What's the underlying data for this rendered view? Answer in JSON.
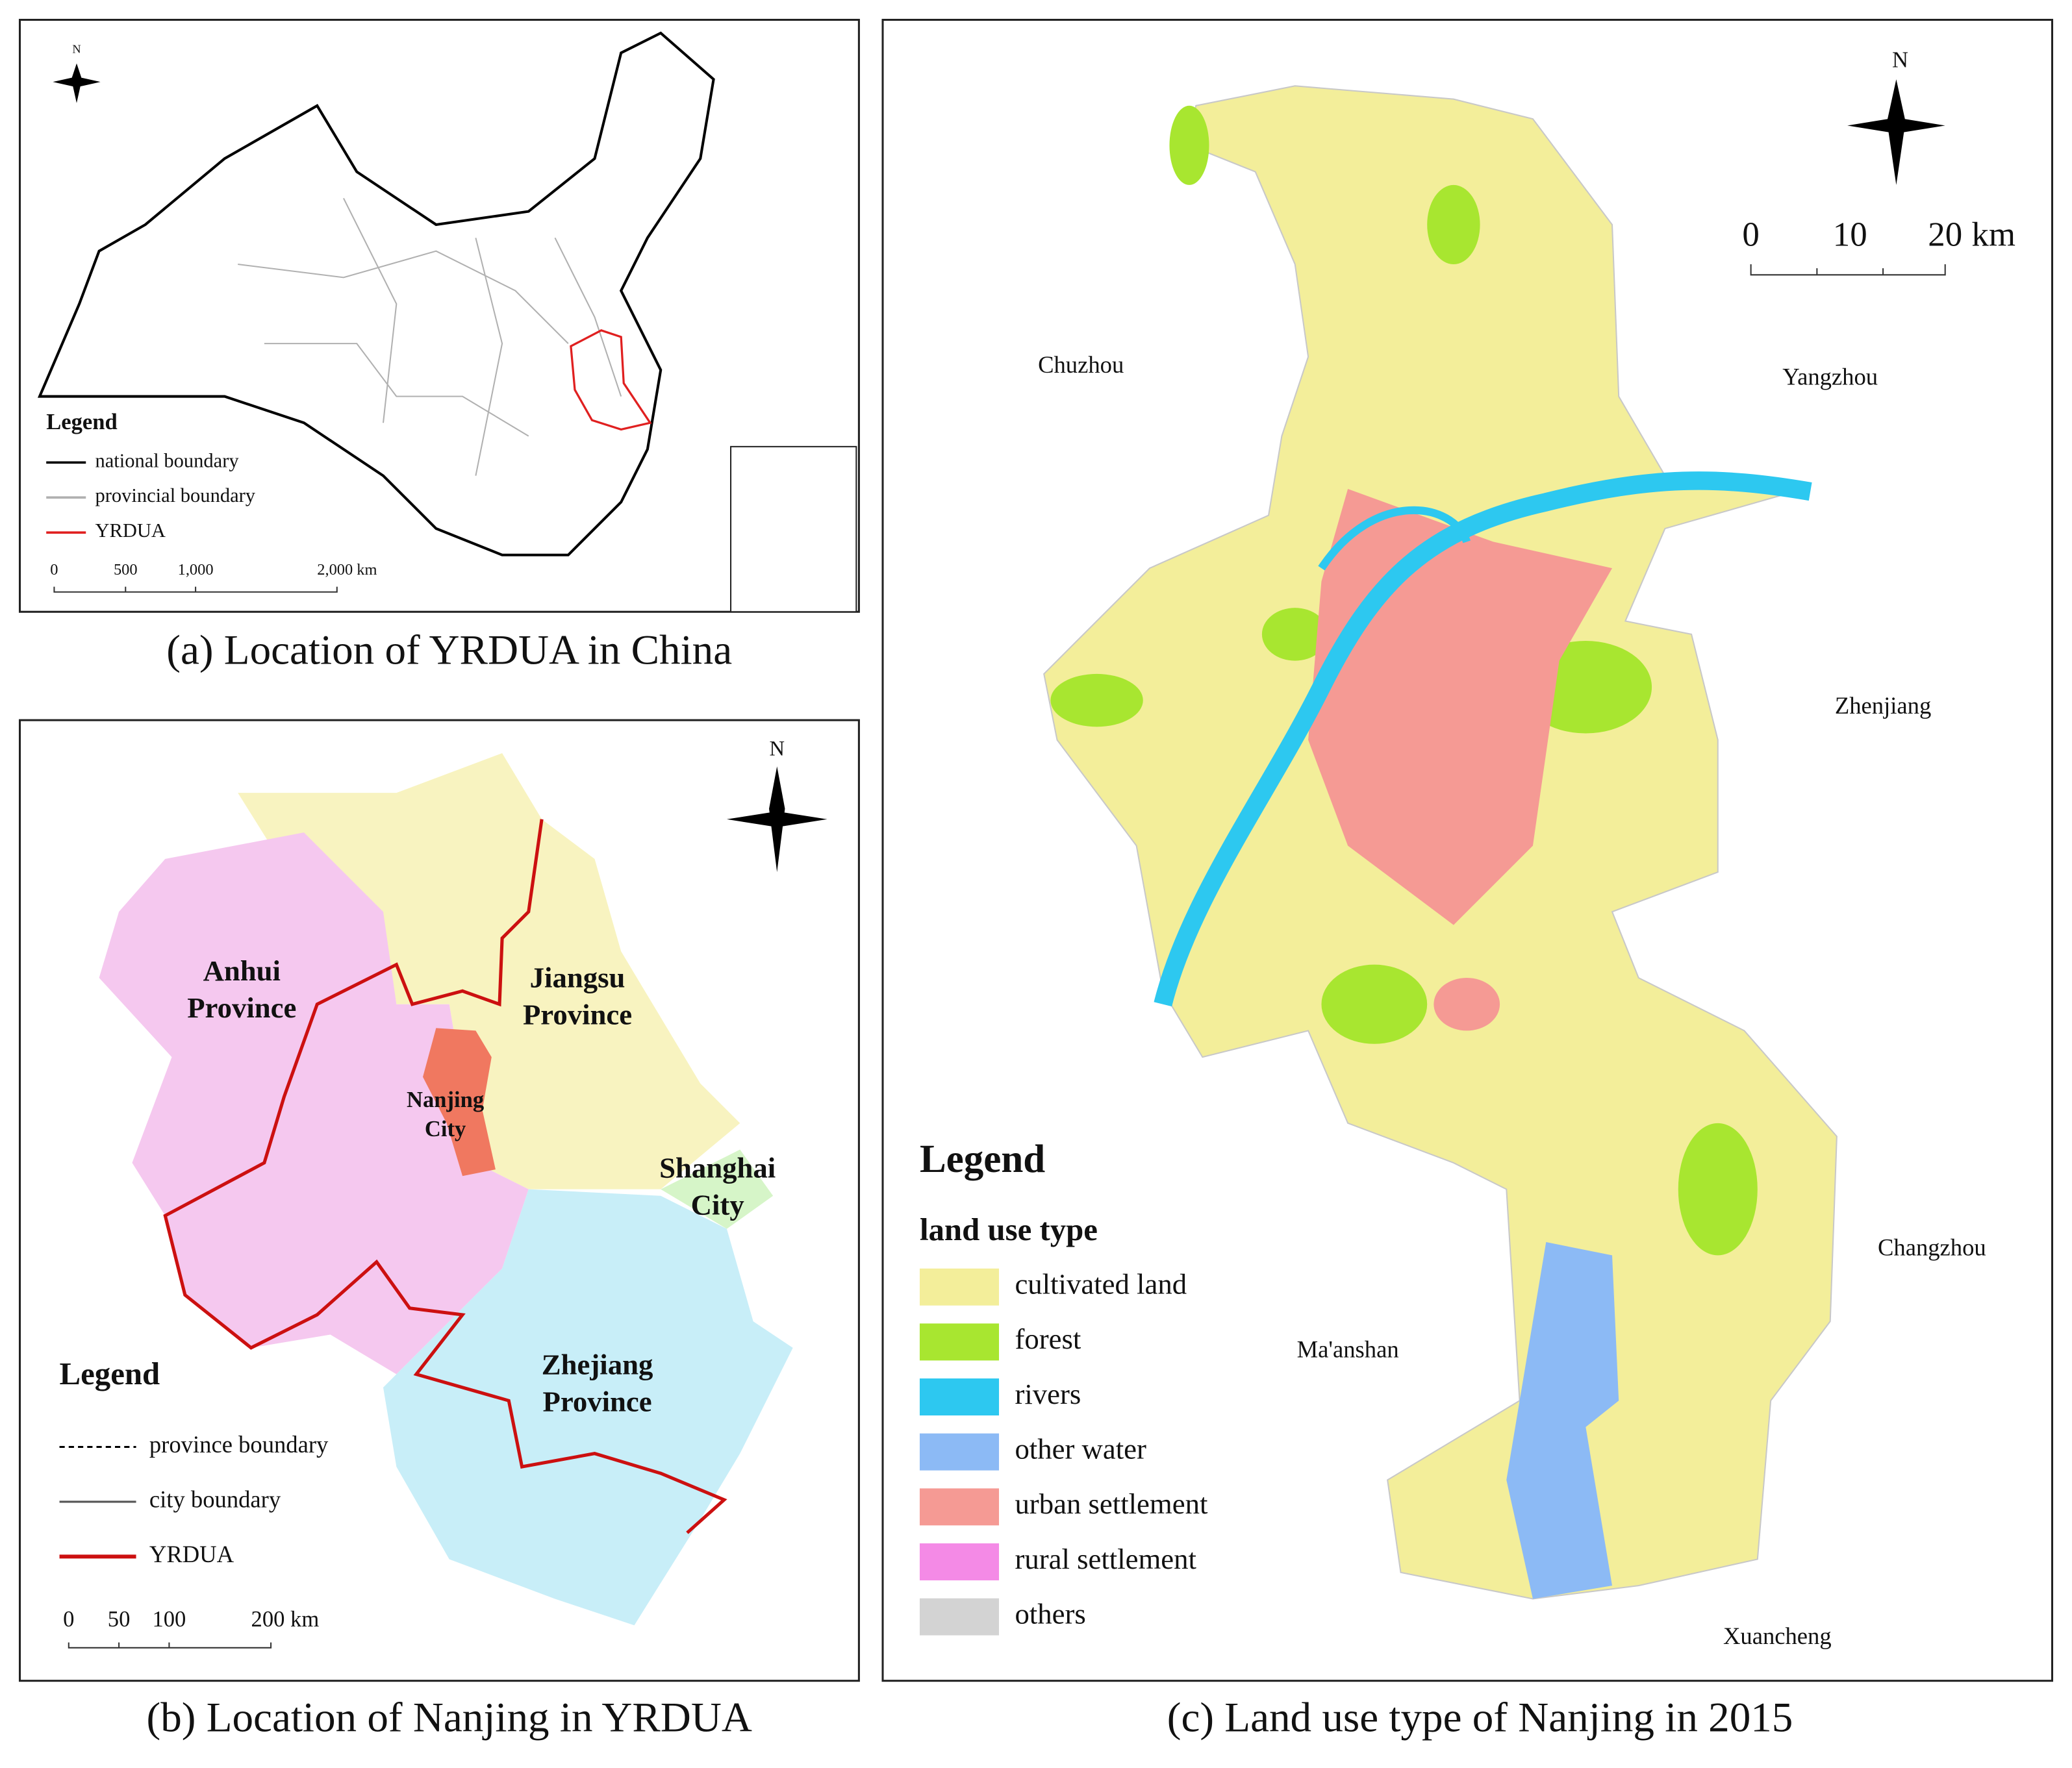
{
  "panel_a": {
    "caption": "(a)  Location of YRDUA in China",
    "north": "N",
    "legend": {
      "title": "Legend",
      "items": [
        {
          "label": "national boundary",
          "color": "#000000"
        },
        {
          "label": "provincial boundary",
          "color": "#b0b0b0"
        },
        {
          "label": "YRDUA",
          "color": "#e02020"
        }
      ]
    },
    "scale": [
      "0",
      "500",
      "1,000",
      "2,000 km"
    ]
  },
  "panel_b": {
    "caption": "(b)  Location of Nanjing in YRDUA",
    "north": "N",
    "regions": [
      {
        "lines": [
          "Anhui",
          "Province"
        ]
      },
      {
        "lines": [
          "Jiangsu",
          "Province"
        ]
      },
      {
        "lines": [
          "Nanjing",
          "City"
        ]
      },
      {
        "lines": [
          "Shanghai",
          "City"
        ]
      },
      {
        "lines": [
          "Zhejiang",
          "Province"
        ]
      }
    ],
    "legend": {
      "title": "Legend",
      "items": [
        {
          "label": "province boundary",
          "color": "#000000",
          "dash": true
        },
        {
          "label": "city boundary",
          "color": "#555555",
          "dash": false
        },
        {
          "label": "YRDUA",
          "color": "#cc1010",
          "dash": false
        }
      ]
    },
    "scale": [
      "0",
      "50",
      "100",
      "200 km"
    ]
  },
  "panel_c": {
    "caption": "(c)  Land use type of Nanjing in 2015",
    "north": "N",
    "scale": [
      "0",
      "10",
      "20",
      "km"
    ],
    "neighbors": [
      "Chuzhou",
      "Yangzhou",
      "Zhenjiang",
      "Changzhou",
      "Ma'anshan",
      "Xuancheng"
    ],
    "legend": {
      "title": "Legend",
      "subtitle": "land use type",
      "items": [
        {
          "label": "cultivated land",
          "color": "#f3ee9a"
        },
        {
          "label": "forest",
          "color": "#a8e630"
        },
        {
          "label": "rivers",
          "color": "#2dc8f0"
        },
        {
          "label": "other water",
          "color": "#8cbaf5"
        },
        {
          "label": "urban settlement",
          "color": "#f59a94"
        },
        {
          "label": "rural settlement",
          "color": "#f48ae6"
        },
        {
          "label": "others",
          "color": "#d3d3d3"
        }
      ]
    }
  }
}
